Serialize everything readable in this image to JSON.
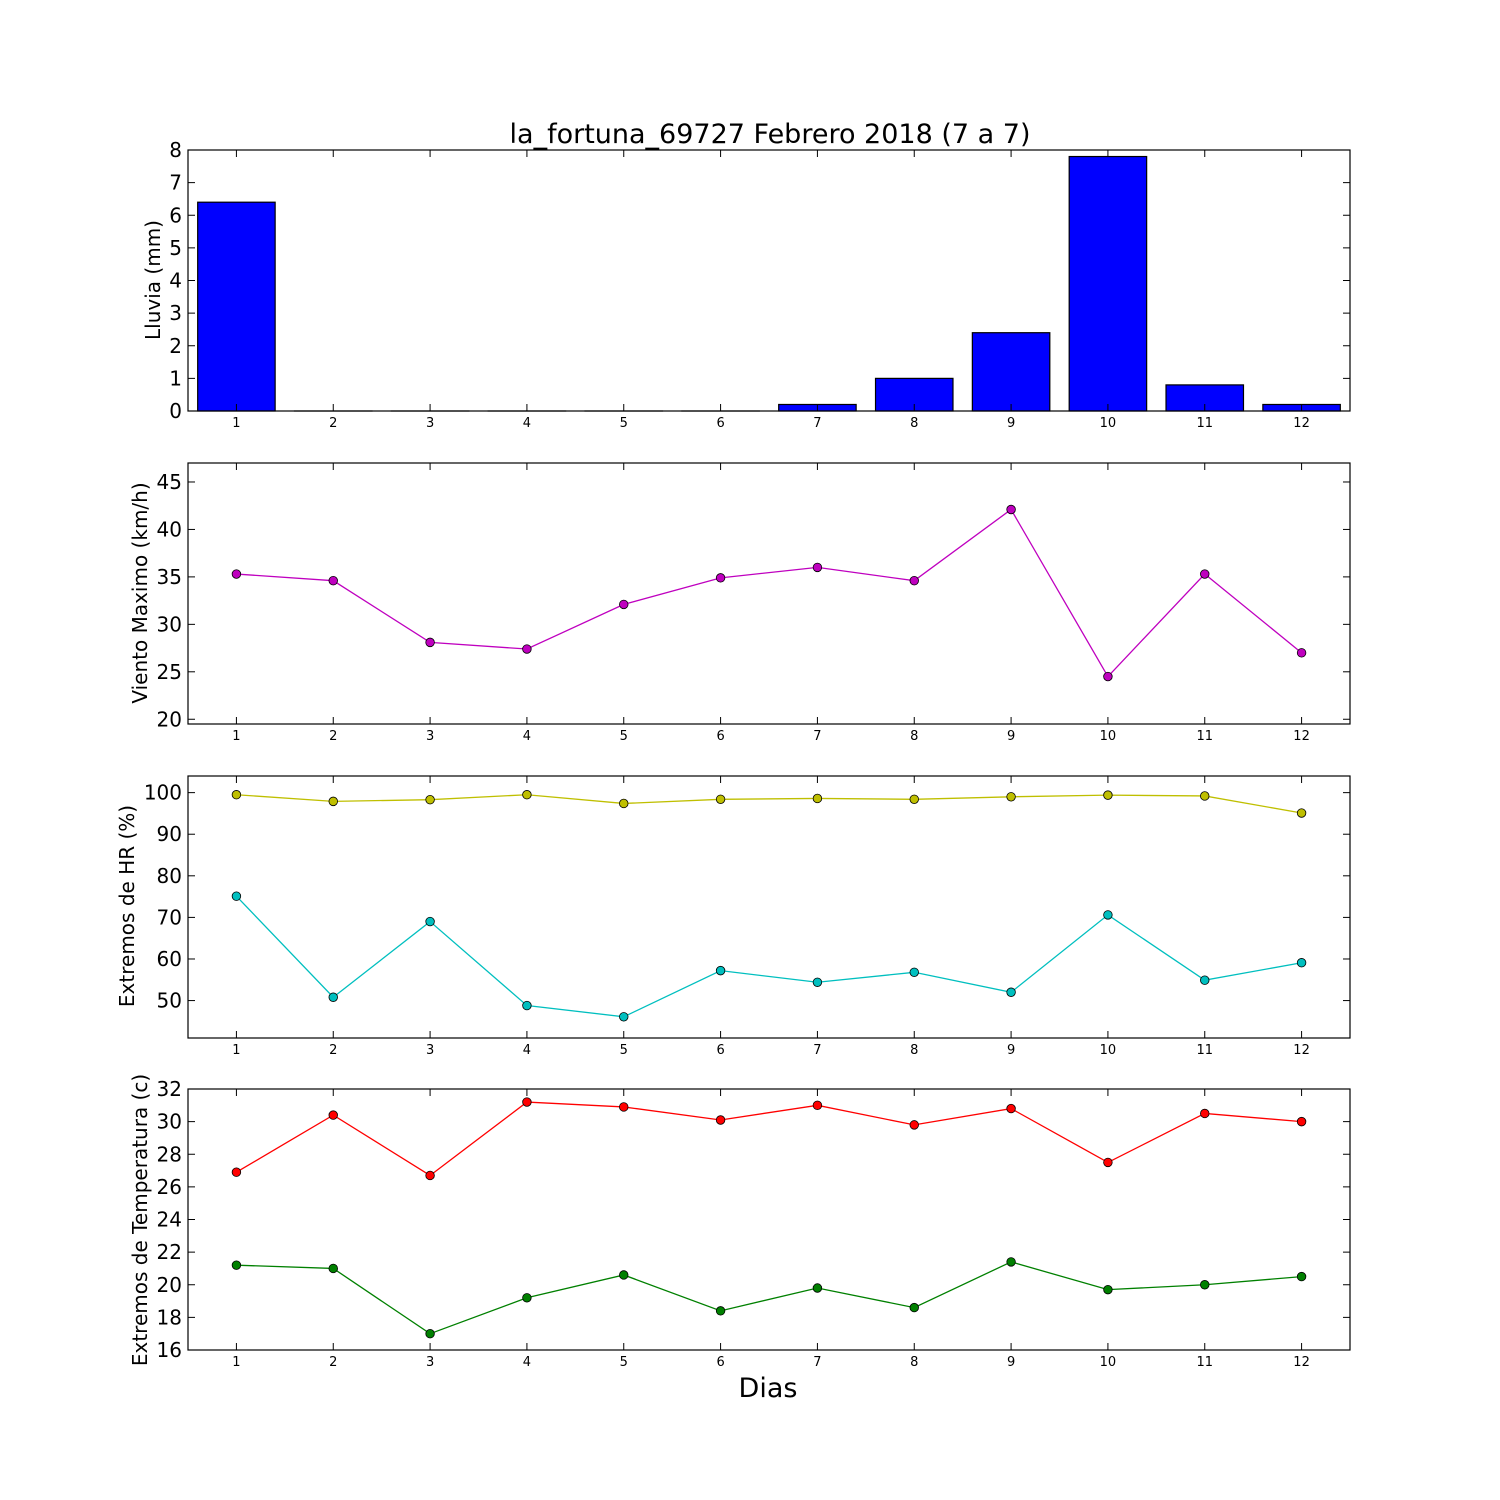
{
  "chart_data": [
    {
      "type": "bar",
      "title": "la_fortuna_69727 Febrero 2018  (7 a 7)",
      "ylabel": "Lluvia (mm)",
      "xlabel": "",
      "categories": [
        "1",
        "2",
        "3",
        "4",
        "5",
        "6",
        "7",
        "8",
        "9",
        "10",
        "11",
        "12"
      ],
      "values": [
        6.4,
        0,
        0,
        0,
        0,
        0,
        0.2,
        1.0,
        2.4,
        7.8,
        0.8,
        0.2
      ],
      "ylim": [
        0,
        8
      ],
      "yticks": [
        "0",
        "1",
        "2",
        "3",
        "4",
        "5",
        "6",
        "7",
        "8"
      ],
      "colors": [
        "#0000ff"
      ]
    },
    {
      "type": "line",
      "ylabel": "Viento Maximo (km/h)",
      "xlabel": "",
      "x": [
        "1",
        "2",
        "3",
        "4",
        "5",
        "6",
        "7",
        "8",
        "9",
        "10",
        "11",
        "12"
      ],
      "series": [
        {
          "values": [
            35.3,
            34.6,
            28.1,
            27.4,
            32.1,
            34.9,
            36.0,
            34.6,
            42.1,
            24.5,
            35.3,
            27.0
          ],
          "color": "#bf00bf"
        }
      ],
      "ylim": [
        19.5,
        47
      ],
      "yticks": [
        "20",
        "25",
        "30",
        "35",
        "40",
        "45"
      ]
    },
    {
      "type": "line",
      "ylabel": "Extremos de HR (%)",
      "xlabel": "",
      "x": [
        "1",
        "2",
        "3",
        "4",
        "5",
        "6",
        "7",
        "8",
        "9",
        "10",
        "11",
        "12"
      ],
      "series": [
        {
          "values": [
            99.5,
            97.9,
            98.3,
            99.5,
            97.4,
            98.4,
            98.6,
            98.4,
            99.0,
            99.4,
            99.2,
            95.1
          ],
          "color": "#bfbf00"
        },
        {
          "values": [
            75.1,
            50.8,
            69.0,
            48.8,
            46.1,
            57.2,
            54.4,
            56.8,
            52.0,
            70.6,
            54.9,
            59.1
          ],
          "color": "#00bfbf"
        }
      ],
      "ylim": [
        41,
        104
      ],
      "yticks": [
        "50",
        "60",
        "70",
        "80",
        "90",
        "100"
      ]
    },
    {
      "type": "line",
      "ylabel": "Extremos de Temperatura (c)",
      "xlabel": "Dias",
      "x": [
        "1",
        "2",
        "3",
        "4",
        "5",
        "6",
        "7",
        "8",
        "9",
        "10",
        "11",
        "12"
      ],
      "series": [
        {
          "values": [
            26.9,
            30.4,
            26.7,
            31.2,
            30.9,
            30.1,
            31.0,
            29.8,
            30.8,
            27.5,
            30.5,
            30.0
          ],
          "color": "#ff0000"
        },
        {
          "values": [
            21.2,
            21.0,
            17.0,
            19.2,
            20.6,
            18.4,
            19.8,
            18.6,
            21.4,
            19.7,
            20.0,
            20.5
          ],
          "color": "#008000"
        }
      ],
      "ylim": [
        16,
        32
      ],
      "yticks": [
        "16",
        "18",
        "20",
        "22",
        "24",
        "26",
        "28",
        "30",
        "32"
      ]
    }
  ]
}
